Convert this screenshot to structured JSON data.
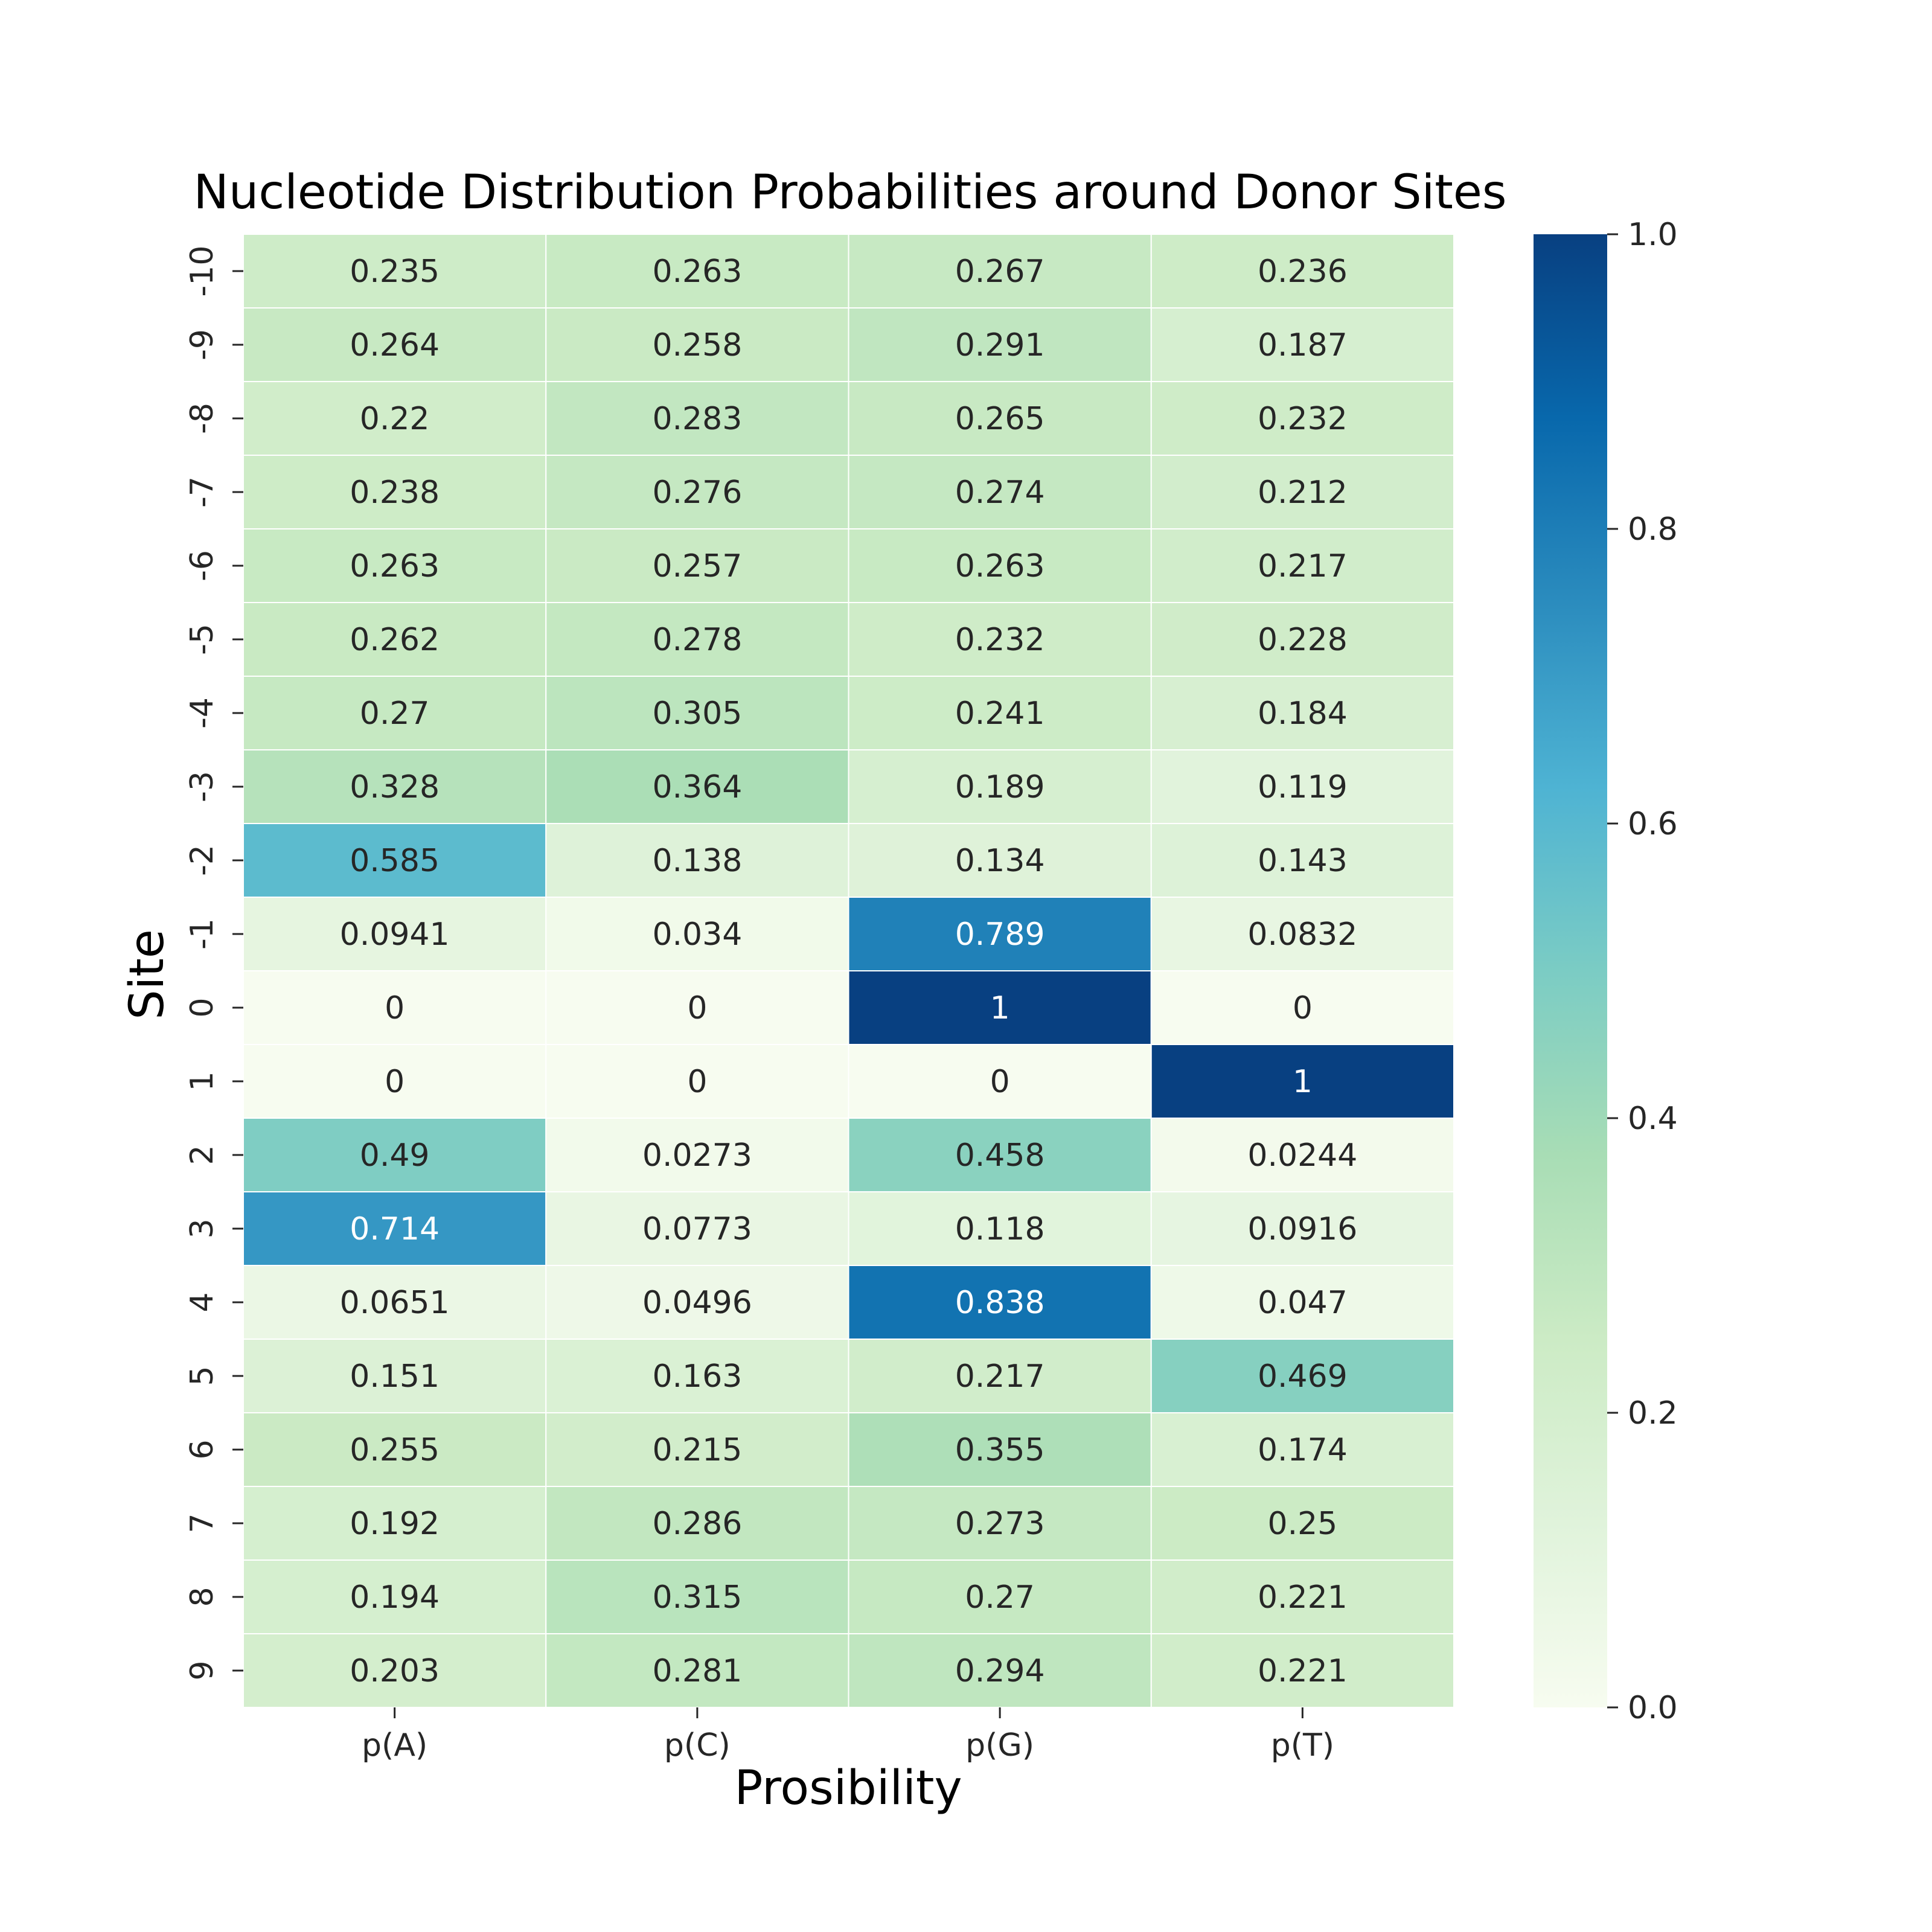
{
  "chart_data": {
    "type": "heatmap",
    "title": "Nucleotide Distribution Probabilities around Donor Sites",
    "xlabel": "Prosibility",
    "ylabel": "Site",
    "columns": [
      "p(A)",
      "p(C)",
      "p(G)",
      "p(T)"
    ],
    "rows": [
      "-10",
      "-9",
      "-8",
      "-7",
      "-6",
      "-5",
      "-4",
      "-3",
      "-2",
      "-1",
      "0",
      "1",
      "2",
      "3",
      "4",
      "5",
      "6",
      "7",
      "8",
      "9"
    ],
    "values": [
      [
        0.235,
        0.263,
        0.267,
        0.236
      ],
      [
        0.264,
        0.258,
        0.291,
        0.187
      ],
      [
        0.22,
        0.283,
        0.265,
        0.232
      ],
      [
        0.238,
        0.276,
        0.274,
        0.212
      ],
      [
        0.263,
        0.257,
        0.263,
        0.217
      ],
      [
        0.262,
        0.278,
        0.232,
        0.228
      ],
      [
        0.27,
        0.305,
        0.241,
        0.184
      ],
      [
        0.328,
        0.364,
        0.189,
        0.119
      ],
      [
        0.585,
        0.138,
        0.134,
        0.143
      ],
      [
        0.0941,
        0.034,
        0.789,
        0.0832
      ],
      [
        0,
        0,
        1,
        0
      ],
      [
        0,
        0,
        0,
        1
      ],
      [
        0.49,
        0.0273,
        0.458,
        0.0244
      ],
      [
        0.714,
        0.0773,
        0.118,
        0.0916
      ],
      [
        0.0651,
        0.0496,
        0.838,
        0.047
      ],
      [
        0.151,
        0.163,
        0.217,
        0.469
      ],
      [
        0.255,
        0.215,
        0.355,
        0.174
      ],
      [
        0.192,
        0.286,
        0.273,
        0.25
      ],
      [
        0.194,
        0.315,
        0.27,
        0.221
      ],
      [
        0.203,
        0.281,
        0.294,
        0.221
      ]
    ],
    "colorbar": {
      "range": [
        0,
        1
      ],
      "ticks": [
        0.0,
        0.2,
        0.4,
        0.6,
        0.8,
        1.0
      ],
      "tick_labels": [
        "0.0",
        "0.2",
        "0.4",
        "0.6",
        "0.8",
        "1.0"
      ]
    },
    "colormap": "GnBu",
    "colormap_stops": [
      "#f7fcf0",
      "#e0f3db",
      "#ccebc5",
      "#a8ddb5",
      "#7bccc4",
      "#4eb3d3",
      "#2b8cbe",
      "#0868ac",
      "#084081"
    ]
  }
}
